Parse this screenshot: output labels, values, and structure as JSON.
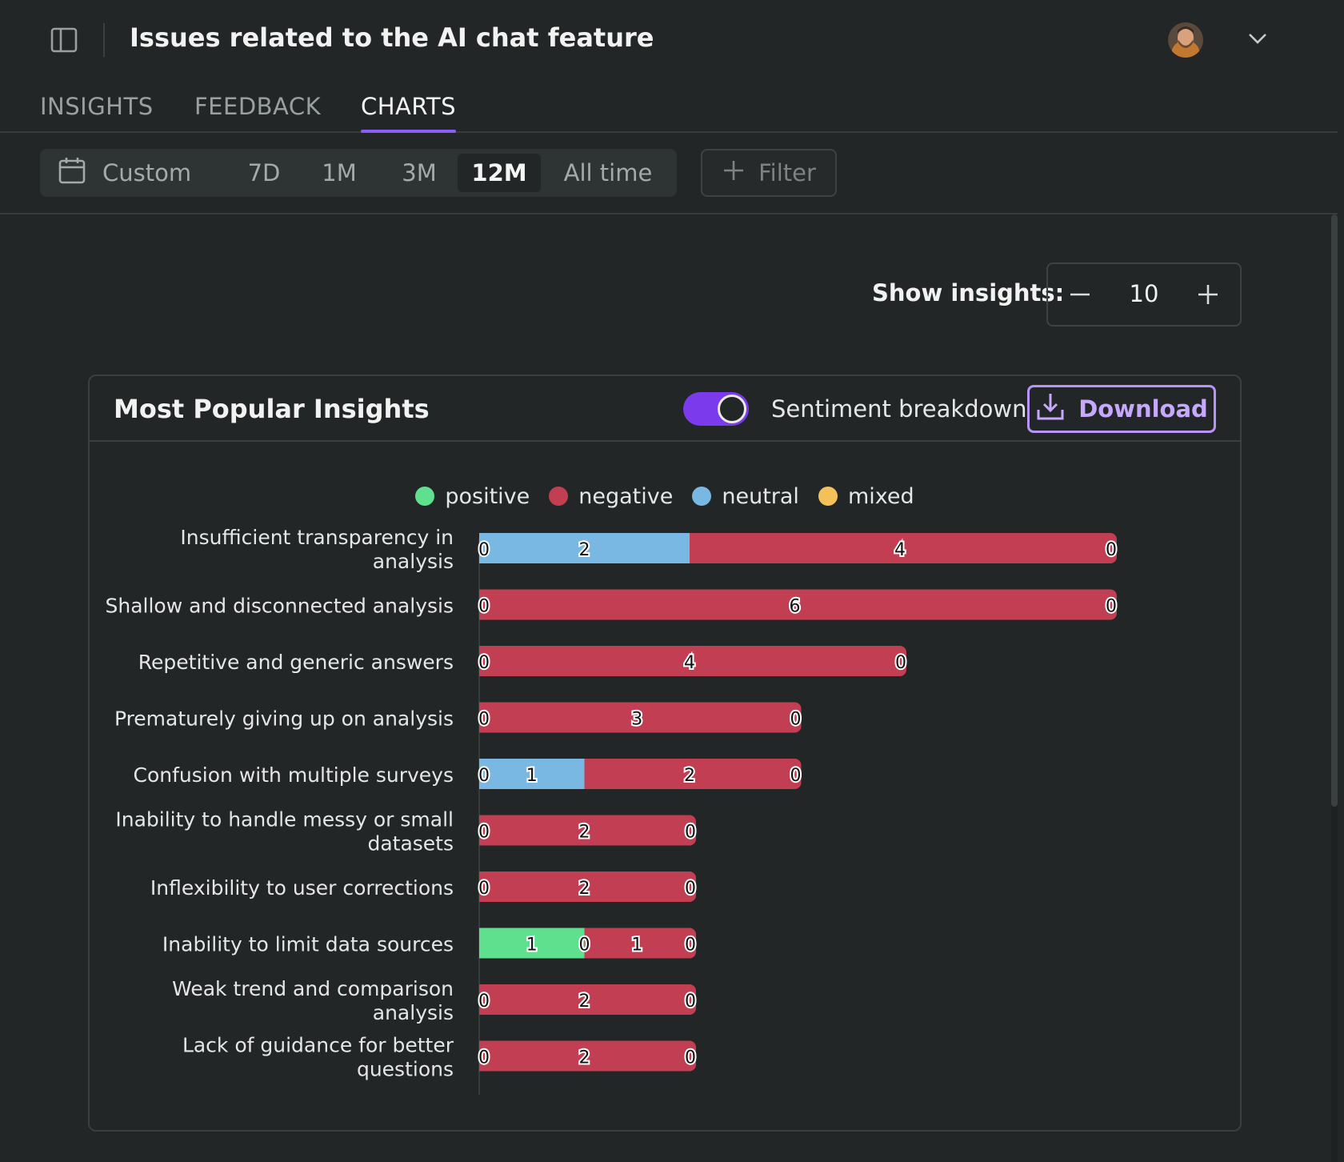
{
  "header": {
    "title": "Issues related to the AI chat feature",
    "sidebar_toggle_icon": "sidebar-panel-icon",
    "menu_icon": "chevron-down-icon"
  },
  "tabs": [
    {
      "label": "INSIGHTS",
      "active": false
    },
    {
      "label": "FEEDBACK",
      "active": false
    },
    {
      "label": "CHARTS",
      "active": true
    }
  ],
  "toolbar": {
    "calendar_icon": "calendar-icon",
    "ranges": [
      "Custom",
      "7D",
      "1M",
      "3M",
      "12M",
      "All time"
    ],
    "selected_range": "12M",
    "filter_label": "Filter"
  },
  "controls": {
    "show_insights_label": "Show insights:",
    "show_insights_value": "10"
  },
  "card": {
    "title": "Most Popular Insights",
    "sentiment_toggle_on": true,
    "sentiment_label": "Sentiment breakdown",
    "download_label": "Download"
  },
  "colors": {
    "accent": "#8b5cf6",
    "positive": "#5ee08f",
    "negative": "#c23e52",
    "neutral": "#7ab8e4",
    "mixed": "#f3c05a"
  },
  "chart_data": {
    "type": "bar",
    "orientation": "horizontal",
    "stacked": true,
    "legend_position": "top-center",
    "categories": [
      [
        "Insufficient transparency in",
        "analysis"
      ],
      [
        "Shallow and disconnected analysis"
      ],
      [
        "Repetitive and generic answers"
      ],
      [
        "Prematurely giving up on analysis"
      ],
      [
        "Confusion with multiple surveys"
      ],
      [
        "Inability to handle messy or small",
        "datasets"
      ],
      [
        "Inflexibility to user corrections"
      ],
      [
        "Inability to limit data sources"
      ],
      [
        "Weak trend and comparison",
        "analysis"
      ],
      [
        "Lack of guidance for better",
        "questions"
      ]
    ],
    "series": [
      {
        "name": "positive",
        "color": "#5ee08f",
        "values": [
          0,
          0,
          0,
          0,
          0,
          0,
          0,
          1,
          0,
          0
        ]
      },
      {
        "name": "neutral",
        "color": "#7ab8e4",
        "values": [
          2,
          0,
          0,
          0,
          1,
          0,
          0,
          0,
          0,
          0
        ]
      },
      {
        "name": "negative",
        "color": "#c23e52",
        "values": [
          4,
          6,
          4,
          3,
          2,
          2,
          2,
          1,
          2,
          2
        ]
      },
      {
        "name": "mixed",
        "color": "#f3c05a",
        "values": [
          0,
          0,
          0,
          0,
          0,
          0,
          0,
          0,
          0,
          0
        ]
      }
    ],
    "segment_labels": [
      [
        0,
        2,
        4,
        0
      ],
      [
        0,
        6,
        0
      ],
      [
        0,
        4,
        0
      ],
      [
        0,
        3,
        0
      ],
      [
        0,
        1,
        2,
        0
      ],
      [
        0,
        2,
        0
      ],
      [
        0,
        2,
        0
      ],
      [
        1,
        0,
        1,
        0
      ],
      [
        0,
        2,
        0
      ],
      [
        0,
        2,
        0
      ]
    ],
    "legend": [
      "positive",
      "negative",
      "neutral",
      "mixed"
    ],
    "xlim": [
      0,
      6
    ]
  }
}
